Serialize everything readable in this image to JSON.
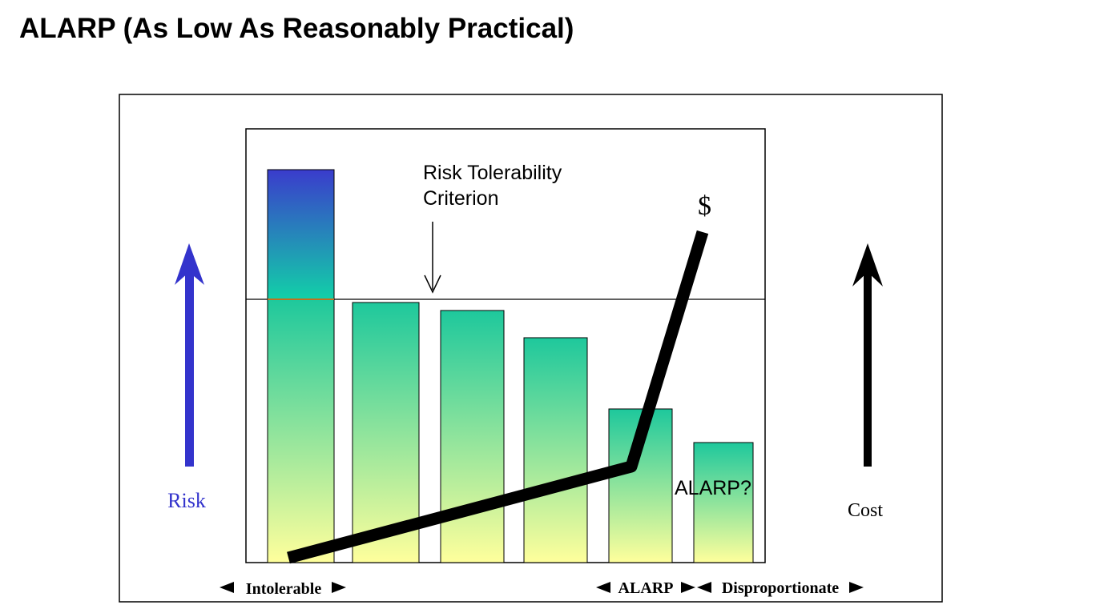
{
  "header": {
    "title": "ALARP (As Low As Reasonably Practical)"
  },
  "diagram": {
    "criterion_label": [
      "Risk Tolerability",
      "Criterion"
    ],
    "cost_symbol": "$",
    "alarp_question": "ALARP?",
    "left_arrow_label": "Risk",
    "right_arrow_label": "Cost",
    "regions": [
      "Intolerable",
      "ALARP",
      "Disproportionate"
    ]
  }
}
